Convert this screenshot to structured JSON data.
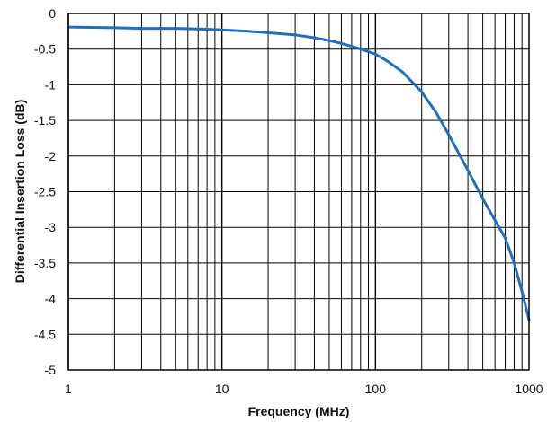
{
  "chart_data": {
    "type": "line",
    "title": "",
    "xlabel": "Frequency (MHz)",
    "ylabel": "Differential Insertion Loss (dB)",
    "x_scale": "log",
    "xlim": [
      1,
      1000
    ],
    "ylim": [
      -5,
      0
    ],
    "grid": true,
    "legend": "none",
    "x_ticks": [
      1,
      10,
      100,
      1000
    ],
    "x_tick_labels": [
      "1",
      "10",
      "100",
      "1000"
    ],
    "y_ticks": [
      0,
      -0.5,
      -1,
      -1.5,
      -2,
      -2.5,
      -3,
      -3.5,
      -4,
      -4.5,
      -5
    ],
    "y_tick_labels": [
      "0",
      "-0.5",
      "-1",
      "-1.5",
      "-2",
      "-2.5",
      "-3",
      "-3.5",
      "-4",
      "-4.5",
      "-5"
    ],
    "series": [
      {
        "color": "#1f6fbf",
        "x": [
          1,
          2,
          3,
          5,
          8,
          10,
          15,
          20,
          30,
          40,
          50,
          60,
          70,
          80,
          100,
          120,
          150,
          200,
          250,
          300,
          400,
          500,
          600,
          700,
          800,
          900,
          1000
        ],
        "y": [
          -0.19,
          -0.2,
          -0.21,
          -0.21,
          -0.22,
          -0.23,
          -0.25,
          -0.27,
          -0.3,
          -0.34,
          -0.38,
          -0.42,
          -0.46,
          -0.5,
          -0.57,
          -0.67,
          -0.82,
          -1.1,
          -1.4,
          -1.7,
          -2.2,
          -2.6,
          -2.9,
          -3.15,
          -3.5,
          -3.9,
          -4.3
        ]
      }
    ]
  }
}
